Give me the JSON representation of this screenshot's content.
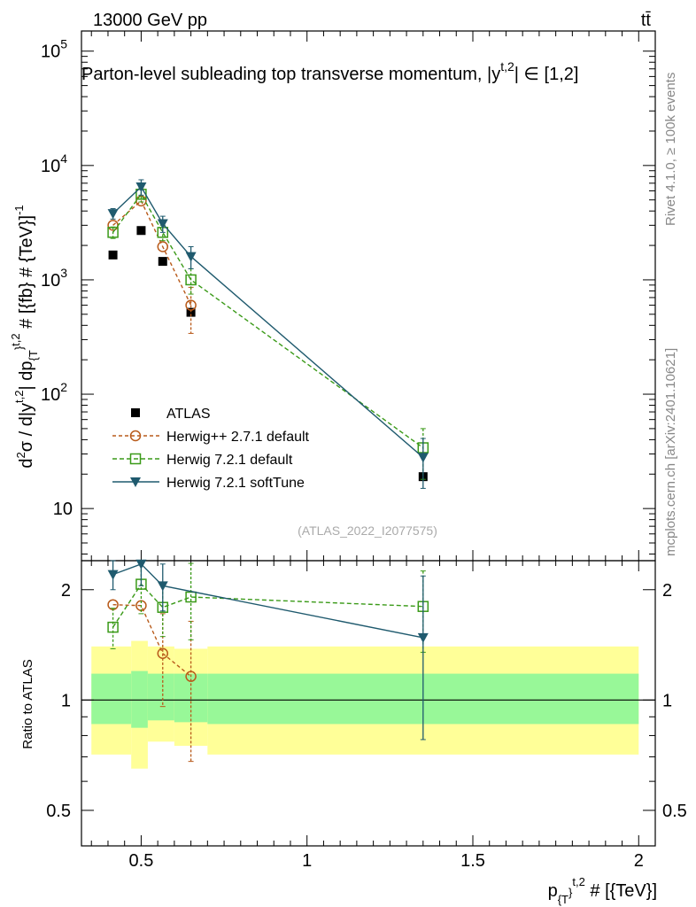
{
  "header": {
    "energy_label": "13000 GeV pp",
    "process_label": "tt̄",
    "plot_title": "Parton-level subleading top transverse momentum, |y",
    "plot_title_sup": "t,2",
    "plot_title_tail": "| ∈ [1,2]",
    "side_label_rivet": "Rivet 4.1.0, ≥ 100k events",
    "side_label_source": "mcplots.cern.ch [arXiv:2401.10621]",
    "analysis_id": "(ATLAS_2022_I2077575)"
  },
  "axes": {
    "y_label_main": "d²σ / d|y^{t,2}| dp_{T}^{t,2} # [{fb} # {TeV}]^{-1}",
    "y_label_ratio": "Ratio to ATLAS",
    "x_label": "p_{T}^{t,2} # [{TeV}]"
  },
  "chart_data": [
    {
      "type": "scatter",
      "name": "main",
      "title": "Parton-level subleading top transverse momentum, |y^{t,2}| ∈ [1,2]",
      "xlabel": "p_{T}^{t,2} # [{TeV}]",
      "ylabel": "d²σ / d|y^{t,2}| dp_{T}^{t,2} # [{fb} # {TeV}]^{-1}",
      "xlim": [
        0.32,
        2.05
      ],
      "ylim": [
        3.5,
        150000
      ],
      "yscale": "log",
      "y_ticks": [
        {
          "value": 10,
          "base": "10",
          "exp": ""
        },
        {
          "value": 100,
          "base": "10",
          "exp": "2"
        },
        {
          "value": 1000,
          "base": "10",
          "exp": "3"
        },
        {
          "value": 10000,
          "base": "10",
          "exp": "4"
        },
        {
          "value": 100000,
          "base": "10",
          "exp": "5"
        }
      ],
      "legend_position": "lower-left",
      "series": [
        {
          "name": "ATLAS",
          "style": "data",
          "color": "#000000",
          "x": [
            0.415,
            0.5,
            0.565,
            0.65,
            1.35
          ],
          "y": [
            1650,
            2700,
            1450,
            520,
            19
          ],
          "yerr": [
            0,
            0,
            0,
            0,
            0
          ]
        },
        {
          "name": "Herwig++ 2.7.1 default",
          "style": "circle",
          "color": "#b85a1a",
          "x": [
            0.415,
            0.5,
            0.565,
            0.65
          ],
          "y": [
            3000,
            4900,
            1950,
            600
          ],
          "yerr": [
            0,
            0,
            0,
            260
          ]
        },
        {
          "name": "Herwig 7.2.1 default",
          "style": "square",
          "color": "#3a9a18",
          "x": [
            0.415,
            0.5,
            0.565,
            0.65,
            1.35
          ],
          "y": [
            2600,
            5600,
            2600,
            1000,
            34
          ],
          "yerr": [
            300,
            800,
            400,
            250,
            16
          ]
        },
        {
          "name": "Herwig 7.2.1 softTune",
          "style": "triangle",
          "color": "#1f5a6e",
          "x": [
            0.415,
            0.5,
            0.565,
            0.65,
            1.35
          ],
          "y": [
            3800,
            6500,
            3100,
            1600,
            28
          ],
          "yerr": [
            400,
            1000,
            500,
            350,
            13
          ]
        }
      ]
    },
    {
      "type": "scatter",
      "name": "ratio",
      "ylabel": "Ratio to ATLAS",
      "xlabel": "p_{T}^{t,2} # [{TeV}]",
      "xlim": [
        0.32,
        2.05
      ],
      "ylim": [
        0.4,
        2.4
      ],
      "yscale": "log",
      "x_ticks": [
        {
          "value": 0.5,
          "label": "0.5"
        },
        {
          "value": 1,
          "label": "1"
        },
        {
          "value": 1.5,
          "label": "1.5"
        },
        {
          "value": 2,
          "label": "2"
        }
      ],
      "y_ticks": [
        {
          "value": 0.5,
          "label": "0.5"
        },
        {
          "value": 1,
          "label": "1"
        },
        {
          "value": 2,
          "label": "2"
        }
      ],
      "bands": [
        {
          "x0": 0.35,
          "x1": 0.47,
          "inner": [
            0.86,
            1.18
          ],
          "outer": [
            0.71,
            1.4
          ]
        },
        {
          "x0": 0.47,
          "x1": 0.52,
          "inner": [
            0.84,
            1.2
          ],
          "outer": [
            0.65,
            1.45
          ]
        },
        {
          "x0": 0.52,
          "x1": 0.6,
          "inner": [
            0.88,
            1.18
          ],
          "outer": [
            0.77,
            1.4
          ]
        },
        {
          "x0": 0.6,
          "x1": 0.7,
          "inner": [
            0.87,
            1.18
          ],
          "outer": [
            0.75,
            1.38
          ]
        },
        {
          "x0": 0.7,
          "x1": 2.0,
          "inner": [
            0.86,
            1.18
          ],
          "outer": [
            0.71,
            1.4
          ]
        }
      ],
      "band_colors": {
        "inner": "#98f898",
        "outer": "#ffff98"
      },
      "series": [
        {
          "name": "Herwig++ 2.7.1 default",
          "style": "circle",
          "color": "#b85a1a",
          "x": [
            0.415,
            0.5,
            0.565,
            0.65
          ],
          "y": [
            1.82,
            1.81,
            1.34,
            1.16
          ],
          "yerr": [
            0,
            0,
            0.38,
            0.48
          ]
        },
        {
          "name": "Herwig 7.2.1 default",
          "style": "square",
          "color": "#3a9a18",
          "x": [
            0.415,
            0.5,
            0.565,
            0.65,
            1.35
          ],
          "y": [
            1.58,
            2.07,
            1.79,
            1.91,
            1.8
          ],
          "yerr": [
            0.2,
            0.35,
            0.3,
            0.45,
            0.45
          ]
        },
        {
          "name": "Herwig 7.2.1 softTune",
          "style": "triangle",
          "color": "#1f5a6e",
          "x": [
            0.415,
            0.5,
            0.565,
            1.35
          ],
          "y": [
            2.2,
            2.35,
            2.05,
            1.48
          ],
          "yerr": [
            0.2,
            0.3,
            0.3,
            0.7
          ]
        }
      ]
    }
  ]
}
